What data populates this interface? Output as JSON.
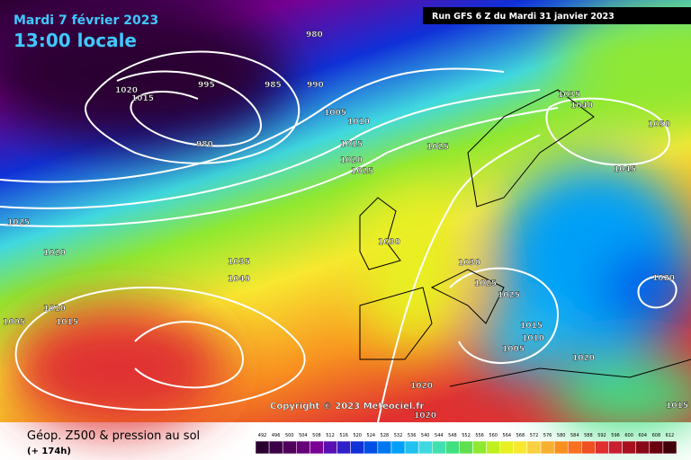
{
  "header": {
    "date": "Mardi 7 février 2023",
    "time": "13:00 locale",
    "run": "Run GFS 6 Z du Mardi 31 janvier 2023"
  },
  "copyright": "Copyright © 2023 Meteociel.fr",
  "legend": {
    "title": "Géop. Z500 & pression au sol",
    "subtitle": "(+ 174h)",
    "scale": [
      492,
      496,
      500,
      504,
      508,
      512,
      516,
      520,
      524,
      528,
      532,
      536,
      540,
      544,
      548,
      552,
      556,
      560,
      564,
      568,
      572,
      576,
      580,
      584,
      588,
      592,
      596,
      600,
      604,
      608,
      612
    ],
    "colors": [
      "#2a0030",
      "#3c0046",
      "#50005c",
      "#660078",
      "#7a0096",
      "#5a10b0",
      "#3020c8",
      "#1030d8",
      "#0050e8",
      "#0078f0",
      "#00a0f8",
      "#20c0f0",
      "#40d8e0",
      "#40e0b0",
      "#40e080",
      "#60e050",
      "#90e830",
      "#c0f020",
      "#e8f020",
      "#f8e830",
      "#f8d040",
      "#f8b030",
      "#f89020",
      "#f87020",
      "#f05020",
      "#e03030",
      "#c82030",
      "#a81020",
      "#880818",
      "#680010",
      "#400008"
    ]
  },
  "isobars": [
    980,
    985,
    990,
    995,
    1020,
    1015,
    980,
    1005,
    1010,
    1015,
    1020,
    1025,
    1025,
    1035,
    1040,
    1050,
    1045,
    1025,
    1020,
    1035,
    1040,
    1030,
    1030,
    1020,
    1010,
    1015,
    1005,
    1025,
    1025,
    1015,
    1010,
    1005,
    1020,
    1020,
    1020,
    1015
  ]
}
